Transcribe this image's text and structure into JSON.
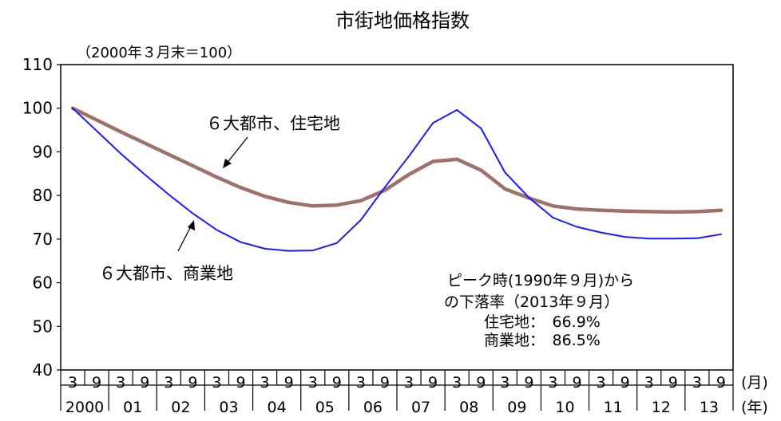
{
  "chart_data": {
    "type": "line",
    "title": "市街地価格指数",
    "subtitle": "（2000年３月末＝100）",
    "ylim": [
      40,
      110
    ],
    "yticks": [
      40,
      50,
      60,
      70,
      80,
      90,
      100,
      110
    ],
    "grid": false,
    "x_month_labels": [
      "3",
      "9",
      "3",
      "9",
      "3",
      "9",
      "3",
      "9",
      "3",
      "9",
      "3",
      "9",
      "3",
      "9",
      "3",
      "9",
      "3",
      "9",
      "3",
      "9",
      "3",
      "9",
      "3",
      "9",
      "3",
      "9",
      "3",
      "9"
    ],
    "x_year_labels": [
      "2000",
      "01",
      "02",
      "03",
      "04",
      "05",
      "06",
      "07",
      "08",
      "09",
      "10",
      "11",
      "12",
      "13"
    ],
    "x_month_unit": "(月)",
    "x_year_unit": "(年)",
    "series": [
      {
        "name": "６大都市、住宅地",
        "color": "#a0706a",
        "values": [
          100,
          97.3,
          94.6,
          92.0,
          89.4,
          86.8,
          84.2,
          81.8,
          79.8,
          78.4,
          77.6,
          77.8,
          78.8,
          81.2,
          84.8,
          87.8,
          88.3,
          85.8,
          81.5,
          79.4,
          77.6,
          76.9,
          76.6,
          76.4,
          76.3,
          76.2,
          76.3,
          76.6
        ]
      },
      {
        "name": "６大都市、商業地",
        "color": "#1a1aff",
        "values": [
          100,
          94.8,
          89.6,
          84.8,
          80.2,
          75.9,
          72.1,
          69.3,
          67.8,
          67.3,
          67.4,
          69.1,
          74.4,
          81.9,
          89.0,
          96.6,
          99.6,
          95.4,
          85.3,
          79.5,
          74.9,
          72.8,
          71.5,
          70.5,
          70.1,
          70.1,
          70.2,
          71.1
        ]
      }
    ],
    "annotations": {
      "residential_label": "６大都市、住宅地",
      "commercial_label": "６大都市、商業地",
      "note_line1": "ピーク時(1990年９月)から",
      "note_line2": "の下落率（2013年９月）",
      "note_line3": "住宅地：　66.9%",
      "note_line4": "商業地：　86.5%"
    }
  }
}
